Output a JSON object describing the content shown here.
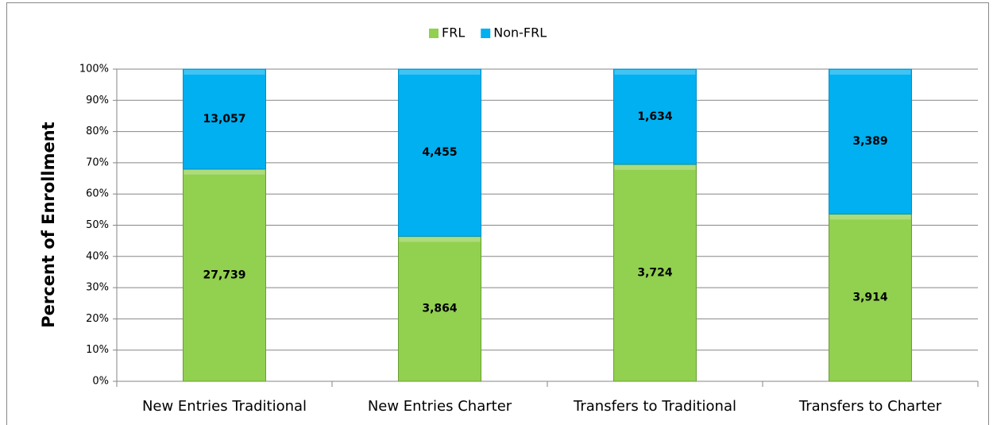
{
  "chart_data": {
    "type": "bar",
    "stacking": "percent",
    "y_label": "Percent of Enrollment",
    "categories": [
      "New Entries Traditional",
      "New Entries Charter",
      "Transfers to Traditional",
      "Transfers to Charter"
    ],
    "series": [
      {
        "name": "FRL",
        "color": "#92d050",
        "values": [
          27739,
          3864,
          3724,
          3914
        ],
        "value_labels": [
          "27,739",
          "3,864",
          "3,724",
          "3,914"
        ]
      },
      {
        "name": "Non-FRL",
        "color": "#00b0f0",
        "values": [
          13057,
          4455,
          1634,
          3389
        ],
        "value_labels": [
          "13,057",
          "4,455",
          "1,634",
          "3,389"
        ]
      }
    ],
    "ylim": [
      0,
      100
    ],
    "yticks": [
      {
        "value": 0,
        "label": "0%"
      },
      {
        "value": 10,
        "label": "10%"
      },
      {
        "value": 20,
        "label": "20%"
      },
      {
        "value": 30,
        "label": "30%"
      },
      {
        "value": 40,
        "label": "40%"
      },
      {
        "value": 50,
        "label": "50%"
      },
      {
        "value": 60,
        "label": "60%"
      },
      {
        "value": 70,
        "label": "70%"
      },
      {
        "value": 80,
        "label": "80%"
      },
      {
        "value": 90,
        "label": "90%"
      },
      {
        "value": 100,
        "label": "100%"
      }
    ],
    "grid": true,
    "legend": "top"
  }
}
